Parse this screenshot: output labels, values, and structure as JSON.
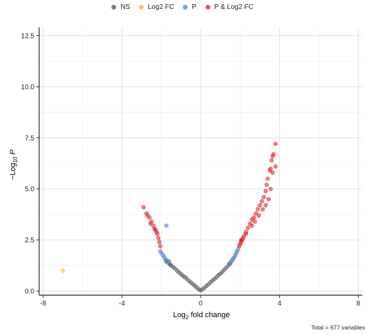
{
  "legend": {
    "items": [
      {
        "label": "NS",
        "color": "#555555"
      },
      {
        "label": "Log2 FC",
        "color": "#f2b43a"
      },
      {
        "label": "P",
        "color": "#4a7fe0"
      },
      {
        "label": "P & Log2 FC",
        "color": "#e0191f"
      }
    ]
  },
  "caption": "Total = 677 variables",
  "chart_data": {
    "type": "scatter",
    "title": "",
    "xlabel": "Log2 fold change",
    "ylabel": "−Log10 P",
    "xlim": [
      -8.2,
      8.2
    ],
    "ylim": [
      -0.2,
      12.9
    ],
    "x_ticks": [
      -8,
      -4,
      0,
      4,
      8
    ],
    "x_tick_labels": [
      "-8",
      "-4",
      "0",
      "4",
      "8"
    ],
    "y_ticks": [
      0,
      2.5,
      5,
      7.5,
      10,
      12.5
    ],
    "y_tick_labels": [
      "0.0",
      "2.5",
      "5.0",
      "7.5",
      "10.0",
      "12.5"
    ],
    "grid": true,
    "legend_position": "top",
    "total_variables": 677,
    "series": [
      {
        "name": "NS",
        "color": "#555555",
        "x": [
          -1.75,
          -1.65,
          -1.55,
          -1.5,
          -1.4,
          -1.3,
          -1.2,
          -1.1,
          -1.0,
          -0.9,
          -0.8,
          -0.7,
          -0.6,
          -0.5,
          -0.4,
          -0.3,
          -0.2,
          -0.1,
          0.0,
          0.1,
          0.2,
          0.3,
          0.4,
          0.5,
          0.6,
          0.7,
          0.8,
          0.9,
          1.0,
          1.1,
          1.2,
          1.3,
          1.4,
          1.5
        ],
        "y": [
          1.45,
          1.38,
          1.3,
          1.25,
          1.18,
          1.1,
          1.0,
          0.92,
          0.83,
          0.75,
          0.68,
          0.6,
          0.5,
          0.42,
          0.34,
          0.26,
          0.17,
          0.09,
          0.03,
          0.09,
          0.17,
          0.26,
          0.34,
          0.43,
          0.52,
          0.6,
          0.68,
          0.78,
          0.85,
          0.95,
          1.05,
          1.15,
          1.25,
          1.35
        ]
      },
      {
        "name": "Log2 FC",
        "color": "#f2b43a",
        "x": [
          -7.0
        ],
        "y": [
          1.0
        ]
      },
      {
        "name": "P",
        "color": "#4a7fe0",
        "x": [
          -2.05,
          -2.0,
          -1.9,
          -1.85,
          -1.8,
          -1.7,
          -1.6,
          -1.75,
          1.45,
          1.55,
          1.6,
          1.65,
          1.7,
          1.75,
          1.8,
          1.85,
          1.9
        ],
        "y": [
          1.95,
          1.85,
          1.75,
          1.65,
          1.55,
          1.5,
          1.45,
          3.2,
          1.35,
          1.45,
          1.5,
          1.6,
          1.65,
          1.75,
          1.85,
          1.95,
          2.05
        ]
      },
      {
        "name": "P & Log2 FC",
        "color": "#e0191f",
        "x": [
          -2.9,
          -2.75,
          -2.6,
          -2.5,
          -2.4,
          -2.3,
          -2.2,
          -2.15,
          -2.1,
          -2.05,
          -2.7,
          -2.55,
          -2.35,
          -2.25,
          1.95,
          2.0,
          2.05,
          2.1,
          2.15,
          2.2,
          2.3,
          2.4,
          2.5,
          2.6,
          2.7,
          2.8,
          2.9,
          3.0,
          3.1,
          3.2,
          3.3,
          3.35,
          3.4,
          3.5,
          3.55,
          3.6,
          3.7,
          3.8,
          2.05,
          2.3,
          2.6,
          2.75,
          2.95,
          3.15,
          3.3,
          3.45,
          3.55,
          3.65,
          3.8,
          3.65
        ],
        "y": [
          4.1,
          3.8,
          3.6,
          3.4,
          3.2,
          3.0,
          2.8,
          2.6,
          2.4,
          2.2,
          3.7,
          3.3,
          3.05,
          2.9,
          2.2,
          2.3,
          2.4,
          2.5,
          2.6,
          2.7,
          2.9,
          3.1,
          3.3,
          3.5,
          3.6,
          3.8,
          4.0,
          4.2,
          4.4,
          4.6,
          4.9,
          5.2,
          5.5,
          5.9,
          6.0,
          6.4,
          6.7,
          7.2,
          2.5,
          2.8,
          3.2,
          3.4,
          3.7,
          4.0,
          4.2,
          4.5,
          5.0,
          5.8,
          6.1,
          6.6
        ]
      }
    ]
  }
}
